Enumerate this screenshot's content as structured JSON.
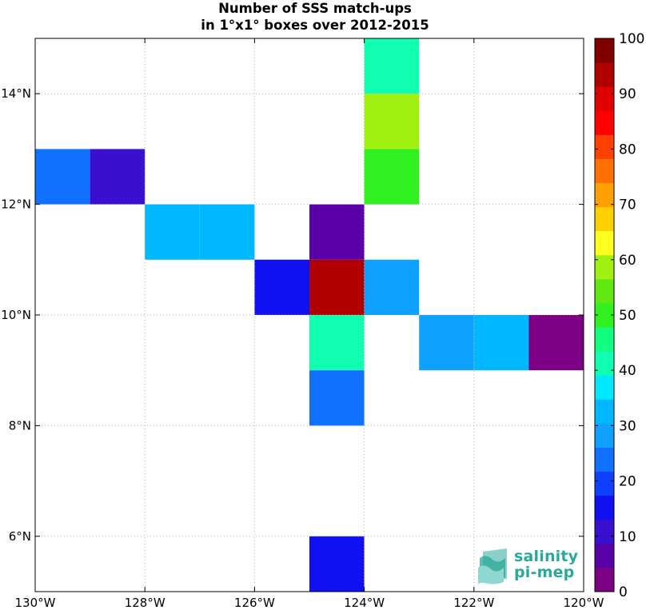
{
  "title": {
    "line1": "Number of SSS match-ups",
    "line2": "in 1°x1° boxes over 2012-2015"
  },
  "logo": {
    "line1": "salinity",
    "line2": "pi-mep",
    "color": "#2aa89a"
  },
  "chart_data": {
    "type": "heatmap",
    "x_tick_labels": [
      "130°W",
      "128°W",
      "126°W",
      "124°W",
      "122°W",
      "120°W"
    ],
    "x_tick_values": [
      -130,
      -128,
      -126,
      -124,
      -122,
      -120
    ],
    "y_tick_labels": [
      "6°N",
      "8°N",
      "10°N",
      "12°N",
      "14°N"
    ],
    "y_tick_values": [
      6,
      8,
      10,
      12,
      14
    ],
    "xlim": [
      -130,
      -120
    ],
    "ylim": [
      5,
      15
    ],
    "grid": true,
    "cells": [
      {
        "lon": -124,
        "lat": 14,
        "value": 42
      },
      {
        "lon": -124,
        "lat": 13,
        "value": 58
      },
      {
        "lon": -124,
        "lat": 12,
        "value": 52
      },
      {
        "lon": -130,
        "lat": 12,
        "value": 22
      },
      {
        "lon": -129,
        "lat": 12,
        "value": 13
      },
      {
        "lon": -128,
        "lat": 11,
        "value": 32
      },
      {
        "lon": -127,
        "lat": 11,
        "value": 32
      },
      {
        "lon": -125,
        "lat": 11,
        "value": 7
      },
      {
        "lon": -126,
        "lat": 10,
        "value": 17
      },
      {
        "lon": -125,
        "lat": 10,
        "value": 92
      },
      {
        "lon": -124,
        "lat": 10,
        "value": 27
      },
      {
        "lon": -125,
        "lat": 9,
        "value": 42
      },
      {
        "lon": -123,
        "lat": 9,
        "value": 27
      },
      {
        "lon": -122,
        "lat": 9,
        "value": 32
      },
      {
        "lon": -121,
        "lat": 9,
        "value": 3
      },
      {
        "lon": -125,
        "lat": 8,
        "value": 22
      },
      {
        "lon": -125,
        "lat": 5,
        "value": 17
      }
    ],
    "colorbar": {
      "range": [
        0,
        100
      ],
      "tick_labels": [
        "0",
        "10",
        "20",
        "30",
        "40",
        "50",
        "60",
        "70",
        "80",
        "90",
        "100"
      ],
      "colors": [
        "#7d0185",
        "#5a00a8",
        "#3a10d0",
        "#1010f0",
        "#1040ff",
        "#1070ff",
        "#10a0ff",
        "#00b8ff",
        "#00e8ff",
        "#10ffb0",
        "#10ff80",
        "#30f020",
        "#60e810",
        "#a0f010",
        "#ffff20",
        "#ffd000",
        "#ffa000",
        "#ff7000",
        "#ff4000",
        "#ff0000",
        "#e00000",
        "#b00000",
        "#800000"
      ]
    }
  }
}
